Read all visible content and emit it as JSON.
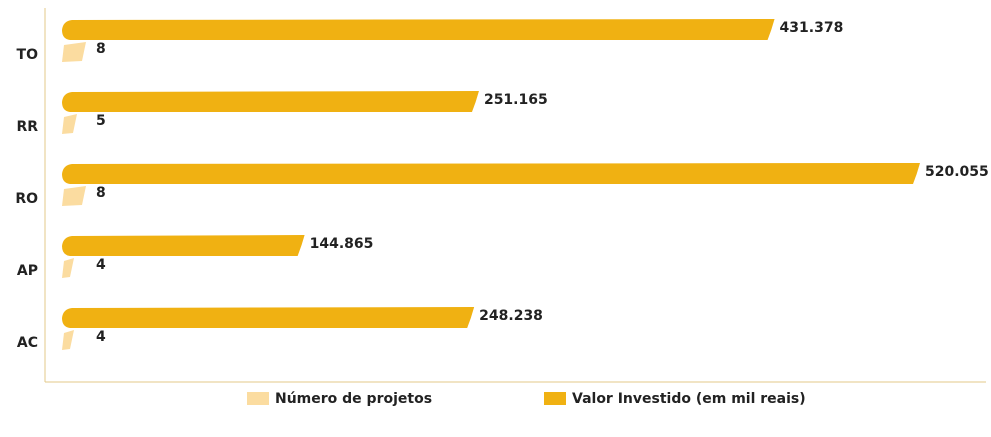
{
  "chart_data": {
    "type": "bar",
    "orientation": "horizontal",
    "categories": [
      "TO",
      "RR",
      "RO",
      "AP",
      "AC"
    ],
    "series": [
      {
        "name": "Valor Investido (em mil reais)",
        "color": "#f0b112",
        "values": [
          431378,
          251165,
          520055,
          144865,
          248238
        ],
        "value_labels": [
          "431.378",
          "251.165",
          "520.055",
          "144.865",
          "248.238"
        ]
      },
      {
        "name": "Número de projetos",
        "color": "#fbdca0",
        "values": [
          8,
          5,
          8,
          4,
          4
        ]
      }
    ],
    "legend_order": [
      1,
      0
    ]
  }
}
